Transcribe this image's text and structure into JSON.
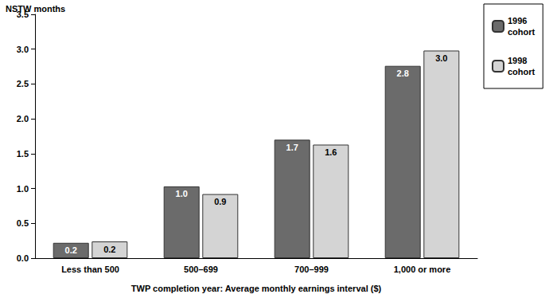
{
  "chart_data": {
    "type": "bar",
    "ylabel": "NSTW months",
    "xlabel": "TWP completion year: Average monthly earnings interval ($)",
    "categories": [
      "Less than 500",
      "500–699",
      "700–999",
      "1,000 or more"
    ],
    "series": [
      {
        "name": "1996 cohort",
        "color": "#6b6b6b",
        "values": [
          0.22,
          1.03,
          1.7,
          2.76
        ],
        "value_labels": [
          "0.2",
          "1.0",
          "1.7",
          "2.8"
        ]
      },
      {
        "name": "1998 cohort",
        "color": "#d4d4d4",
        "values": [
          0.24,
          0.92,
          1.63,
          2.98
        ],
        "value_labels": [
          "0.2",
          "0.9",
          "1.6",
          "3.0"
        ]
      }
    ],
    "ylim": [
      0,
      3.5
    ],
    "yticks": [
      {
        "value": 0,
        "label": "0.0"
      },
      0.5,
      {
        "value": 1,
        "label": "1.0"
      },
      1.5,
      {
        "value": 2,
        "label": "2.0"
      },
      2.5,
      {
        "value": 3,
        "label": "3.0"
      },
      3.5
    ],
    "grid": false,
    "legend": "right",
    "data_labels": true
  }
}
